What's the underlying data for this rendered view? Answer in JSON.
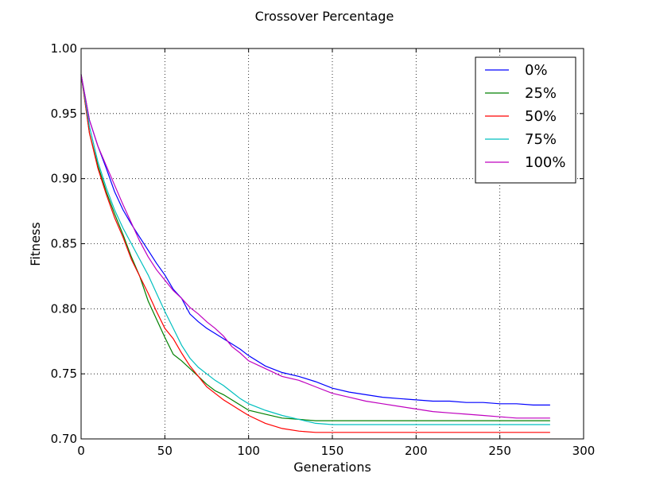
{
  "chart_data": {
    "type": "line",
    "title": "Crossover Percentage",
    "xlabel": "Generations",
    "ylabel": "Fitness",
    "xlim": [
      0,
      300
    ],
    "ylim": [
      0.7,
      1.0
    ],
    "xticks": [
      "0",
      "50",
      "100",
      "150",
      "200",
      "250",
      "300"
    ],
    "yticks": [
      "0.70",
      "0.75",
      "0.80",
      "0.85",
      "0.90",
      "0.95",
      "1.00"
    ],
    "grid": true,
    "legend_position": "top-right",
    "series": [
      {
        "name": "0%",
        "color": "#0000ff",
        "x": [
          0,
          5,
          10,
          15,
          20,
          25,
          30,
          35,
          40,
          45,
          50,
          55,
          60,
          65,
          70,
          75,
          80,
          85,
          90,
          95,
          100,
          110,
          120,
          130,
          140,
          150,
          160,
          170,
          180,
          190,
          200,
          210,
          220,
          230,
          240,
          250,
          260,
          270,
          280
        ],
        "y": [
          0.98,
          0.945,
          0.925,
          0.908,
          0.89,
          0.876,
          0.865,
          0.855,
          0.845,
          0.835,
          0.826,
          0.815,
          0.808,
          0.796,
          0.79,
          0.785,
          0.781,
          0.777,
          0.773,
          0.769,
          0.764,
          0.756,
          0.751,
          0.748,
          0.744,
          0.739,
          0.736,
          0.734,
          0.732,
          0.731,
          0.73,
          0.729,
          0.729,
          0.728,
          0.728,
          0.727,
          0.727,
          0.726,
          0.726
        ]
      },
      {
        "name": "25%",
        "color": "#008000",
        "x": [
          0,
          5,
          10,
          15,
          20,
          25,
          30,
          35,
          40,
          45,
          50,
          55,
          60,
          65,
          70,
          75,
          80,
          85,
          90,
          95,
          100,
          110,
          120,
          130,
          140,
          150,
          160,
          170,
          180,
          190,
          200,
          210,
          220,
          230,
          240,
          250,
          260,
          270,
          280
        ],
        "y": [
          0.98,
          0.935,
          0.91,
          0.89,
          0.873,
          0.857,
          0.84,
          0.825,
          0.806,
          0.792,
          0.778,
          0.765,
          0.76,
          0.754,
          0.748,
          0.742,
          0.737,
          0.734,
          0.73,
          0.726,
          0.722,
          0.719,
          0.716,
          0.715,
          0.714,
          0.714,
          0.714,
          0.714,
          0.714,
          0.714,
          0.714,
          0.714,
          0.714,
          0.714,
          0.714,
          0.714,
          0.714,
          0.714,
          0.714
        ]
      },
      {
        "name": "50%",
        "color": "#ff0000",
        "x": [
          0,
          5,
          10,
          15,
          20,
          25,
          30,
          35,
          40,
          45,
          50,
          55,
          60,
          65,
          70,
          75,
          80,
          85,
          90,
          95,
          100,
          110,
          120,
          130,
          140,
          150,
          160,
          170,
          180,
          190,
          200,
          210,
          220,
          230,
          240,
          250,
          260,
          270,
          280
        ],
        "y": [
          0.98,
          0.935,
          0.908,
          0.888,
          0.87,
          0.855,
          0.838,
          0.825,
          0.812,
          0.798,
          0.785,
          0.777,
          0.766,
          0.756,
          0.748,
          0.74,
          0.735,
          0.73,
          0.726,
          0.722,
          0.718,
          0.712,
          0.708,
          0.706,
          0.705,
          0.705,
          0.705,
          0.705,
          0.705,
          0.705,
          0.705,
          0.705,
          0.705,
          0.705,
          0.705,
          0.705,
          0.705,
          0.705,
          0.705
        ]
      },
      {
        "name": "75%",
        "color": "#00bfbf",
        "x": [
          0,
          5,
          10,
          15,
          20,
          25,
          30,
          35,
          40,
          45,
          50,
          55,
          60,
          65,
          70,
          75,
          80,
          85,
          90,
          95,
          100,
          110,
          120,
          130,
          140,
          150,
          160,
          170,
          180,
          190,
          200,
          210,
          220,
          230,
          240,
          250,
          260,
          270,
          280
        ],
        "y": [
          0.98,
          0.94,
          0.913,
          0.893,
          0.876,
          0.862,
          0.85,
          0.838,
          0.826,
          0.812,
          0.798,
          0.785,
          0.772,
          0.762,
          0.755,
          0.75,
          0.745,
          0.741,
          0.736,
          0.731,
          0.727,
          0.722,
          0.718,
          0.715,
          0.712,
          0.711,
          0.711,
          0.711,
          0.711,
          0.711,
          0.711,
          0.711,
          0.711,
          0.711,
          0.711,
          0.711,
          0.711,
          0.711,
          0.711
        ]
      },
      {
        "name": "100%",
        "color": "#bf00bf",
        "x": [
          0,
          5,
          10,
          15,
          20,
          25,
          30,
          35,
          40,
          45,
          50,
          55,
          60,
          65,
          70,
          75,
          80,
          85,
          90,
          95,
          100,
          110,
          120,
          130,
          140,
          150,
          160,
          170,
          180,
          190,
          200,
          210,
          220,
          230,
          240,
          250,
          260,
          270,
          280
        ],
        "y": [
          0.98,
          0.945,
          0.925,
          0.91,
          0.895,
          0.88,
          0.866,
          0.852,
          0.84,
          0.83,
          0.822,
          0.814,
          0.808,
          0.801,
          0.796,
          0.79,
          0.785,
          0.779,
          0.771,
          0.766,
          0.76,
          0.754,
          0.748,
          0.745,
          0.74,
          0.735,
          0.732,
          0.729,
          0.727,
          0.725,
          0.723,
          0.721,
          0.72,
          0.719,
          0.718,
          0.717,
          0.716,
          0.716,
          0.716
        ]
      }
    ]
  }
}
